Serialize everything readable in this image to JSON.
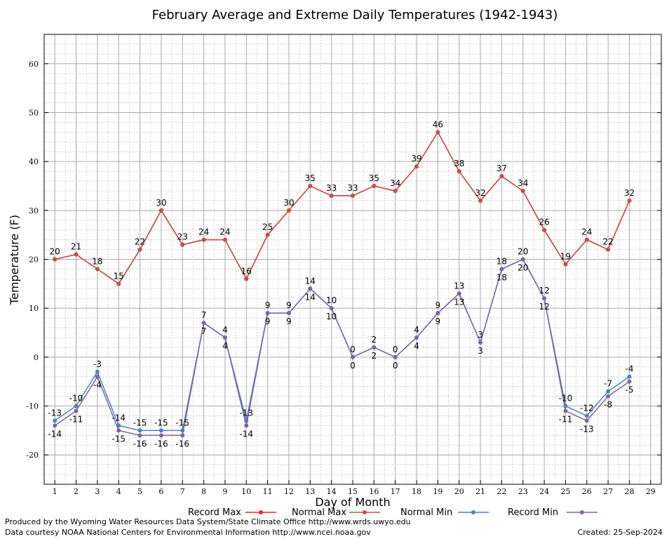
{
  "chart_data": {
    "type": "line",
    "title": "February Average and Extreme Daily Temperatures (1942-1943)",
    "xlabel": "Day of Month",
    "ylabel": "Temperature (F)",
    "xlim": [
      0.5,
      29.5
    ],
    "ylim": [
      -26,
      66
    ],
    "x_ticks": [
      1,
      2,
      3,
      4,
      5,
      6,
      7,
      8,
      9,
      10,
      11,
      12,
      13,
      14,
      15,
      16,
      17,
      18,
      19,
      20,
      21,
      22,
      23,
      24,
      25,
      26,
      27,
      28,
      29
    ],
    "y_ticks": [
      -20,
      -10,
      0,
      10,
      20,
      30,
      40,
      50,
      60
    ],
    "grid": true,
    "legend_position": "bottom",
    "x": [
      1,
      2,
      3,
      4,
      5,
      6,
      7,
      8,
      9,
      10,
      11,
      12,
      13,
      14,
      15,
      16,
      17,
      18,
      19,
      20,
      21,
      22,
      23,
      24,
      25,
      26,
      27,
      28
    ],
    "series": [
      {
        "name": "Record Max",
        "color": "#e8262b",
        "values": [
          20,
          21,
          18,
          15,
          22,
          30,
          23,
          24,
          24,
          16,
          25,
          30,
          35,
          33,
          33,
          35,
          34,
          39,
          46,
          38,
          32,
          37,
          34,
          26,
          19,
          24,
          22,
          32
        ],
        "show_labels": false
      },
      {
        "name": "Normal Max",
        "color": "#c0504d",
        "values": [
          20,
          21,
          18,
          15,
          22,
          30,
          23,
          24,
          24,
          16,
          25,
          30,
          35,
          33,
          33,
          35,
          34,
          39,
          46,
          38,
          32,
          37,
          34,
          26,
          19,
          24,
          22,
          32
        ],
        "show_labels": true,
        "label_pos": "above"
      },
      {
        "name": "Normal Min",
        "color": "#4f81bd",
        "values": [
          -13,
          -10,
          -3,
          -14,
          -15,
          -15,
          -15,
          7,
          4,
          -13,
          9,
          9,
          14,
          10,
          0,
          2,
          0,
          4,
          9,
          13,
          3,
          18,
          20,
          12,
          -10,
          -12,
          -7,
          -4
        ],
        "show_labels": true,
        "label_pos": "above"
      },
      {
        "name": "Record Min",
        "color": "#8064a2",
        "values": [
          -14,
          -11,
          -4,
          -15,
          -16,
          -16,
          -16,
          7,
          4,
          -14,
          9,
          9,
          14,
          10,
          0,
          2,
          0,
          4,
          9,
          13,
          3,
          18,
          20,
          12,
          -11,
          -13,
          -8,
          -5
        ],
        "show_labels": true,
        "label_pos": "below"
      }
    ]
  },
  "footer": {
    "produced_by": "Produced by the Wyoming Water Resources Data System/State Climate Office http://www.wrds.uwyo.edu",
    "courtesy": "Data courtesy NOAA National Centers for Environmental Information http://www.ncei.noaa.gov",
    "created": "Created:  25-Sep-2024"
  }
}
